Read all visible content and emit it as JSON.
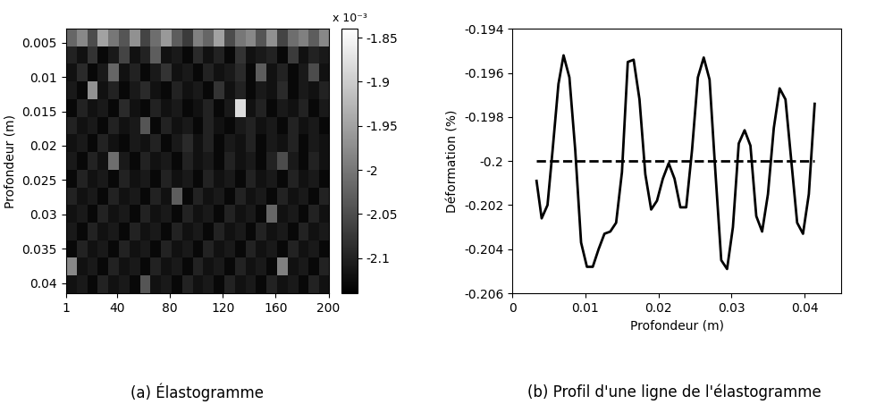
{
  "chart_data": [
    {
      "type": "heatmap",
      "title": "(a) Élastogramme",
      "y_label": "Profondeur (m)",
      "xlim": [
        1,
        200
      ],
      "xticks": [
        1,
        40,
        80,
        120,
        160,
        200
      ],
      "ylim": [
        0.0415,
        0.003
      ],
      "yticks": [
        0.005,
        0.01,
        0.015,
        0.02,
        0.025,
        0.03,
        0.035,
        0.04
      ],
      "colorbar_label": "x 10⁻³",
      "colorbar_range": [
        -2.14,
        -1.84
      ],
      "colorbar_ticks": [
        -1.85,
        -1.9,
        -1.95,
        -2,
        -2.05,
        -2.1
      ],
      "color": "gray",
      "cells": [
        [
          -2.02,
          -1.98,
          -2.05,
          -1.95,
          -2.0,
          -2.04,
          -1.97,
          -2.06,
          -2.01,
          -1.96,
          -2.03,
          -2.07,
          -1.99,
          -2.02,
          -1.95,
          -2.05,
          -2.0,
          -1.98,
          -2.04,
          -1.97,
          -2.06,
          -2.01,
          -1.99,
          -2.03,
          -1.98
        ],
        [
          -2.1,
          -2.12,
          -2.08,
          -2.13,
          -2.11,
          -2.06,
          -2.12,
          -2.1,
          -2.03,
          -2.12,
          -2.11,
          -2.13,
          -2.09,
          -2.12,
          -2.1,
          -2.13,
          -2.08,
          -2.12,
          -2.11,
          -2.1,
          -2.13,
          -2.07,
          -2.12,
          -2.1,
          -2.11
        ],
        [
          -2.12,
          -2.09,
          -2.13,
          -2.11,
          -2.02,
          -2.12,
          -2.1,
          -2.13,
          -2.11,
          -2.08,
          -2.12,
          -2.11,
          -2.13,
          -2.1,
          -2.12,
          -2.11,
          -2.09,
          -2.13,
          -2.03,
          -2.12,
          -2.1,
          -2.13,
          -2.11,
          -2.05,
          -2.12
        ],
        [
          -2.11,
          -2.13,
          -1.97,
          -2.12,
          -2.1,
          -2.13,
          -2.11,
          -2.09,
          -2.12,
          -2.13,
          -2.1,
          -2.12,
          -2.11,
          -2.13,
          -2.08,
          -2.12,
          -2.1,
          -2.13,
          -2.11,
          -2.12,
          -2.09,
          -2.13,
          -2.11,
          -2.12,
          -2.1
        ],
        [
          -2.13,
          -2.1,
          -2.12,
          -2.11,
          -2.13,
          -2.09,
          -2.12,
          -2.13,
          -2.1,
          -2.12,
          -2.11,
          -2.13,
          -2.12,
          -2.1,
          -2.13,
          -2.11,
          -1.88,
          -2.12,
          -2.1,
          -2.13,
          -2.11,
          -2.12,
          -2.1,
          -2.13,
          -2.11
        ],
        [
          -2.1,
          -2.12,
          -2.11,
          -2.13,
          -2.1,
          -2.12,
          -2.11,
          -2.04,
          -2.13,
          -2.1,
          -2.12,
          -2.11,
          -2.13,
          -2.1,
          -2.12,
          -2.13,
          -2.11,
          -2.1,
          -2.12,
          -2.11,
          -2.13,
          -2.1,
          -2.12,
          -2.11,
          -2.13
        ],
        [
          -2.12,
          -2.11,
          -2.13,
          -2.1,
          -2.12,
          -2.13,
          -2.11,
          -2.12,
          -2.1,
          -2.13,
          -2.11,
          -2.09,
          -2.12,
          -2.1,
          -2.13,
          -2.11,
          -2.12,
          -2.1,
          -2.13,
          -2.11,
          -2.12,
          -2.1,
          -2.13,
          -2.11,
          -2.12
        ],
        [
          -2.11,
          -2.13,
          -2.1,
          -2.12,
          -2.01,
          -2.11,
          -2.13,
          -2.1,
          -2.12,
          -2.11,
          -2.13,
          -2.1,
          -2.12,
          -2.11,
          -2.13,
          -2.1,
          -2.12,
          -2.11,
          -2.13,
          -2.1,
          -2.05,
          -2.11,
          -2.13,
          -2.1,
          -2.12
        ],
        [
          -2.13,
          -2.1,
          -2.12,
          -2.11,
          -2.13,
          -2.1,
          -2.12,
          -2.11,
          -2.13,
          -2.1,
          -2.12,
          -2.11,
          -2.13,
          -2.1,
          -2.12,
          -2.11,
          -2.13,
          -2.1,
          -2.12,
          -2.11,
          -2.13,
          -2.1,
          -2.12,
          -2.11,
          -2.13
        ],
        [
          -2.1,
          -2.12,
          -2.11,
          -2.13,
          -2.1,
          -2.12,
          -2.11,
          -2.13,
          -2.1,
          -2.12,
          -2.03,
          -2.13,
          -2.1,
          -2.12,
          -2.11,
          -2.13,
          -2.1,
          -2.12,
          -2.11,
          -2.13,
          -2.1,
          -2.12,
          -2.11,
          -2.13,
          -2.1
        ],
        [
          -2.12,
          -2.11,
          -2.13,
          -2.1,
          -2.12,
          -2.11,
          -2.13,
          -2.1,
          -2.12,
          -2.11,
          -2.13,
          -2.1,
          -2.12,
          -2.11,
          -2.13,
          -2.1,
          -2.12,
          -2.11,
          -2.13,
          -2.02,
          -2.12,
          -2.11,
          -2.13,
          -2.1,
          -2.12
        ],
        [
          -2.11,
          -2.13,
          -2.1,
          -2.12,
          -2.11,
          -2.13,
          -2.1,
          -2.12,
          -2.11,
          -2.13,
          -2.1,
          -2.12,
          -2.11,
          -2.13,
          -2.1,
          -2.12,
          -2.11,
          -2.13,
          -2.1,
          -2.12,
          -2.11,
          -2.13,
          -2.1,
          -2.12,
          -2.11
        ],
        [
          -2.13,
          -2.1,
          -2.12,
          -2.11,
          -2.13,
          -2.1,
          -2.12,
          -2.11,
          -2.13,
          -2.1,
          -2.12,
          -2.11,
          -2.13,
          -2.1,
          -2.12,
          -2.11,
          -2.13,
          -2.1,
          -2.12,
          -2.11,
          -2.13,
          -2.1,
          -2.12,
          -2.11,
          -2.13
        ],
        [
          -1.98,
          -2.12,
          -2.11,
          -2.13,
          -2.1,
          -2.12,
          -2.11,
          -2.13,
          -2.1,
          -2.12,
          -2.11,
          -2.13,
          -2.1,
          -2.12,
          -2.11,
          -2.13,
          -2.1,
          -2.12,
          -2.11,
          -2.13,
          -1.99,
          -2.12,
          -2.11,
          -2.13,
          -2.1
        ],
        [
          -2.12,
          -2.11,
          -2.13,
          -2.1,
          -2.12,
          -2.11,
          -2.13,
          -2.04,
          -2.12,
          -2.11,
          -2.13,
          -2.1,
          -2.12,
          -2.11,
          -2.13,
          -2.1,
          -2.12,
          -2.11,
          -2.13,
          -2.1,
          -2.12,
          -2.11,
          -2.13,
          -2.1,
          -2.12
        ]
      ]
    },
    {
      "type": "line",
      "title": "(b) Profil d'une ligne de l'élastogramme",
      "x_label": "Profondeur (m)",
      "y_label": "Déformation (%)",
      "xlim": [
        0,
        0.045
      ],
      "xticks": [
        0,
        0.01,
        0.02,
        0.03,
        0.04
      ],
      "ylim": [
        -0.206,
        -0.194
      ],
      "yticks": [
        -0.206,
        -0.204,
        -0.202,
        -0.2,
        -0.198,
        -0.196,
        -0.194
      ],
      "series": [
        {
          "color": "#000000",
          "line_style": "solid",
          "x": [
            0.0033,
            0.004,
            0.0048,
            0.0055,
            0.0063,
            0.007,
            0.0078,
            0.0086,
            0.0094,
            0.0102,
            0.011,
            0.0118,
            0.0126,
            0.0134,
            0.0142,
            0.015,
            0.0158,
            0.0166,
            0.0174,
            0.0182,
            0.019,
            0.0198,
            0.0206,
            0.0214,
            0.0222,
            0.023,
            0.0238,
            0.0246,
            0.0254,
            0.0262,
            0.027,
            0.0278,
            0.0286,
            0.0294,
            0.0302,
            0.031,
            0.0318,
            0.0326,
            0.0334,
            0.0342,
            0.035,
            0.0358,
            0.0366,
            0.0374,
            0.0382,
            0.039,
            0.0398,
            0.0406,
            0.0414
          ],
          "values": [
            -0.2009,
            -0.2026,
            -0.202,
            -0.1995,
            -0.1965,
            -0.1952,
            -0.1962,
            -0.1995,
            -0.2037,
            -0.2048,
            -0.2048,
            -0.204,
            -0.2033,
            -0.2032,
            -0.2028,
            -0.2005,
            -0.1955,
            -0.1954,
            -0.1972,
            -0.2006,
            -0.2022,
            -0.2018,
            -0.2008,
            -0.2001,
            -0.2008,
            -0.2021,
            -0.2021,
            -0.1995,
            -0.1962,
            -0.1953,
            -0.1963,
            -0.2005,
            -0.2045,
            -0.2049,
            -0.203,
            -0.1992,
            -0.1986,
            -0.1993,
            -0.2025,
            -0.2032,
            -0.2015,
            -0.1985,
            -0.1967,
            -0.1972,
            -0.2,
            -0.2028,
            -0.2033,
            -0.2015,
            -0.1974
          ]
        },
        {
          "color": "#000000",
          "line_style": "dashed",
          "x": [
            0.0033,
            0.0414
          ],
          "values": [
            -0.2,
            -0.2
          ]
        }
      ]
    }
  ]
}
